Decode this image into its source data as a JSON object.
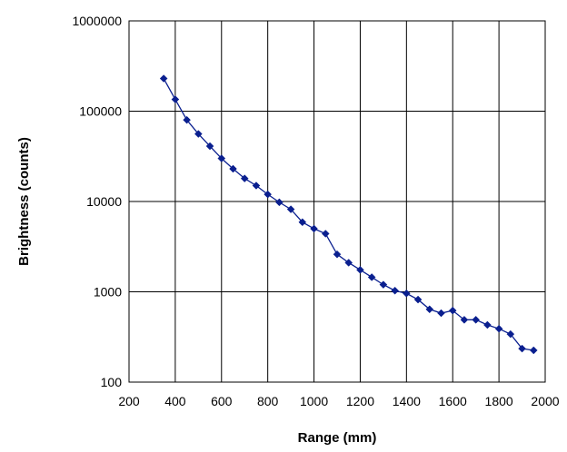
{
  "chart_data": {
    "type": "line",
    "title": "",
    "xlabel": "Range (mm)",
    "ylabel": "Brightness (counts)",
    "xlim": [
      200,
      2000
    ],
    "ylim": [
      100,
      1000000
    ],
    "yscale": "log",
    "grid": true,
    "legend": "none",
    "x_ticks": [
      "200",
      "400",
      "600",
      "800",
      "1000",
      "1200",
      "1400",
      "1600",
      "1800",
      "2000"
    ],
    "y_ticks": [
      "100",
      "1000",
      "10000",
      "100000",
      "1000000"
    ],
    "series": [
      {
        "color": "#0a1f8f",
        "marker": "diamond",
        "x": [
          350,
          400,
          450,
          500,
          550,
          600,
          650,
          700,
          750,
          800,
          850,
          900,
          950,
          1000,
          1050,
          1100,
          1150,
          1200,
          1250,
          1300,
          1350,
          1400,
          1450,
          1500,
          1550,
          1600,
          1650,
          1700,
          1750,
          1800,
          1850,
          1900,
          1950
        ],
        "y": [
          230000,
          135000,
          80000,
          56000,
          41000,
          30000,
          23000,
          18000,
          15000,
          12000,
          9800,
          8200,
          5900,
          5000,
          4400,
          2600,
          2100,
          1750,
          1450,
          1200,
          1030,
          960,
          820,
          640,
          580,
          620,
          490,
          490,
          430,
          390,
          340,
          235,
          225
        ]
      }
    ]
  }
}
